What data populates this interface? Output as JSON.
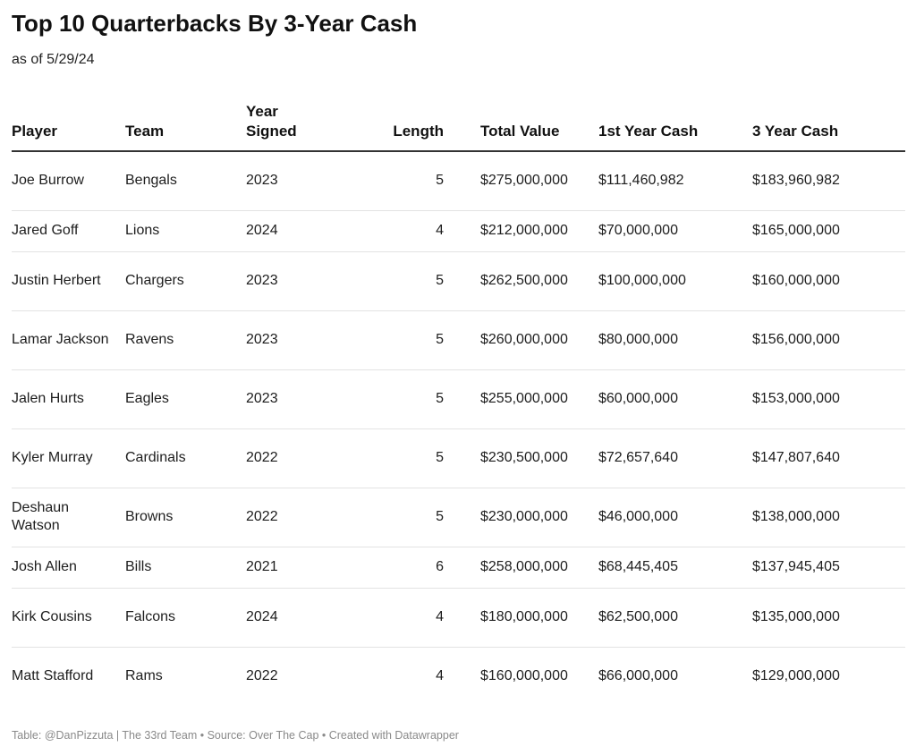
{
  "title": "Top 10 Quarterbacks By 3-Year Cash",
  "subtitle": "as of 5/29/24",
  "footer": "Table: @DanPizzuta | The 33rd Team • Source: Over The Cap • Created with Datawrapper",
  "columns": {
    "player": "Player",
    "team": "Team",
    "year_signed": "Year Signed",
    "length": "Length",
    "total_value": "Total Value",
    "first_year_cash": "1st Year Cash",
    "three_year_cash": "3 Year Cash"
  },
  "rows": [
    {
      "player": "Joe Burrow",
      "team": "Bengals",
      "year_signed": "2023",
      "length": "5",
      "total_value": "$275,000,000",
      "first_year_cash": "$111,460,982",
      "three_year_cash": "$183,960,982"
    },
    {
      "player": "Jared Goff",
      "team": "Lions",
      "year_signed": "2024",
      "length": "4",
      "total_value": "$212,000,000",
      "first_year_cash": "$70,000,000",
      "three_year_cash": "$165,000,000"
    },
    {
      "player": "Justin Herbert",
      "team": "Chargers",
      "year_signed": "2023",
      "length": "5",
      "total_value": "$262,500,000",
      "first_year_cash": "$100,000,000",
      "three_year_cash": "$160,000,000"
    },
    {
      "player": "Lamar Jackson",
      "team": "Ravens",
      "year_signed": "2023",
      "length": "5",
      "total_value": "$260,000,000",
      "first_year_cash": "$80,000,000",
      "three_year_cash": "$156,000,000"
    },
    {
      "player": "Jalen Hurts",
      "team": "Eagles",
      "year_signed": "2023",
      "length": "5",
      "total_value": "$255,000,000",
      "first_year_cash": "$60,000,000",
      "three_year_cash": "$153,000,000"
    },
    {
      "player": "Kyler Murray",
      "team": "Cardinals",
      "year_signed": "2022",
      "length": "5",
      "total_value": "$230,500,000",
      "first_year_cash": "$72,657,640",
      "three_year_cash": "$147,807,640"
    },
    {
      "player": "Deshaun Watson",
      "team": "Browns",
      "year_signed": "2022",
      "length": "5",
      "total_value": "$230,000,000",
      "first_year_cash": "$46,000,000",
      "three_year_cash": "$138,000,000"
    },
    {
      "player": "Josh Allen",
      "team": "Bills",
      "year_signed": "2021",
      "length": "6",
      "total_value": "$258,000,000",
      "first_year_cash": "$68,445,405",
      "three_year_cash": "$137,945,405"
    },
    {
      "player": "Kirk Cousins",
      "team": "Falcons",
      "year_signed": "2024",
      "length": "4",
      "total_value": "$180,000,000",
      "first_year_cash": "$62,500,000",
      "three_year_cash": "$135,000,000"
    },
    {
      "player": "Matt Stafford",
      "team": "Rams",
      "year_signed": "2022",
      "length": "4",
      "total_value": "$160,000,000",
      "first_year_cash": "$66,000,000",
      "three_year_cash": "$129,000,000"
    }
  ],
  "chart_data": {
    "type": "table",
    "title": "Top 10 Quarterbacks By 3-Year Cash",
    "subtitle": "as of 5/29/24",
    "columns": [
      "Player",
      "Team",
      "Year Signed",
      "Length",
      "Total Value",
      "1st Year Cash",
      "3 Year Cash"
    ],
    "rows": [
      [
        "Joe Burrow",
        "Bengals",
        2023,
        5,
        275000000,
        111460982,
        183960982
      ],
      [
        "Jared Goff",
        "Lions",
        2024,
        4,
        212000000,
        70000000,
        165000000
      ],
      [
        "Justin Herbert",
        "Chargers",
        2023,
        5,
        262500000,
        100000000,
        160000000
      ],
      [
        "Lamar Jackson",
        "Ravens",
        2023,
        5,
        260000000,
        80000000,
        156000000
      ],
      [
        "Jalen Hurts",
        "Eagles",
        2023,
        5,
        255000000,
        60000000,
        153000000
      ],
      [
        "Kyler Murray",
        "Cardinals",
        2022,
        5,
        230500000,
        72657640,
        147807640
      ],
      [
        "Deshaun Watson",
        "Browns",
        2022,
        5,
        230000000,
        46000000,
        138000000
      ],
      [
        "Josh Allen",
        "Bills",
        2021,
        6,
        258000000,
        68445405,
        137945405
      ],
      [
        "Kirk Cousins",
        "Falcons",
        2024,
        4,
        180000000,
        62500000,
        135000000
      ],
      [
        "Matt Stafford",
        "Rams",
        2022,
        4,
        160000000,
        66000000,
        129000000
      ]
    ]
  }
}
